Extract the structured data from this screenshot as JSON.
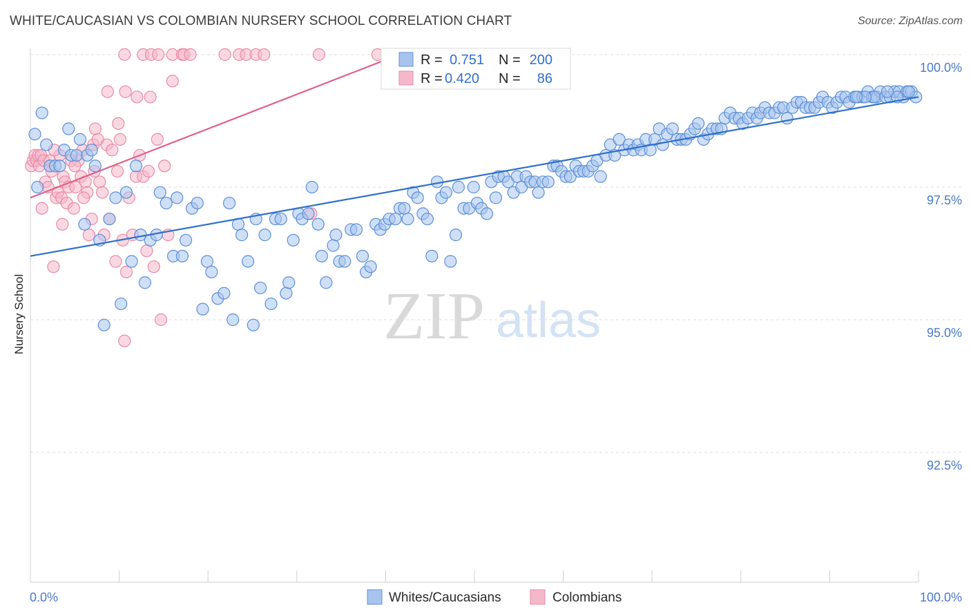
{
  "title": "WHITE/CAUCASIAN VS COLOMBIAN NURSERY SCHOOL CORRELATION CHART",
  "source": "Source: ZipAtlas.com",
  "watermark": {
    "zip": "ZIP",
    "atlas": "atlas"
  },
  "colors": {
    "blue_fill": "#a8c4ee",
    "blue_stroke": "#5b8fd6",
    "blue_line": "#2e6fcc",
    "pink_fill": "#f5b8cb",
    "pink_stroke": "#e88aa8",
    "pink_line": "#e0608a",
    "grid": "#dddddd",
    "tick_text": "#4a7ac8"
  },
  "legend_top": {
    "rows": [
      {
        "r_label": "R =",
        "r_value": "0.751",
        "n_label": "N =",
        "n_value": "200",
        "color": "blue"
      },
      {
        "r_label": "R =",
        "r_value": "0.420",
        "n_label": "N =",
        "n_value": "86",
        "color": "pink"
      }
    ]
  },
  "legend_bottom": [
    {
      "label": "Whites/Caucasians",
      "color": "blue"
    },
    {
      "label": "Colombians",
      "color": "pink"
    }
  ],
  "chart_data": {
    "type": "scatter",
    "title": "WHITE/CAUCASIAN VS COLOMBIAN NURSERY SCHOOL CORRELATION CHART",
    "xlabel": "",
    "ylabel": "Nursery School",
    "xlim": [
      0,
      100
    ],
    "ylim": [
      90.0,
      100.2
    ],
    "x_tick_labels": [
      "0.0%",
      "100.0%"
    ],
    "y_ticks": [
      92.5,
      95.0,
      97.5,
      100.0
    ],
    "y_tick_labels": [
      "92.5%",
      "95.0%",
      "97.5%",
      "100.0%"
    ],
    "grid": true,
    "legend_position": "top-center",
    "series": [
      {
        "name": "Whites/Caucasians",
        "color": "blue",
        "trend": {
          "x": [
            0,
            100
          ],
          "y": [
            96.2,
            99.2
          ]
        },
        "points": [
          [
            0.5,
            98.5
          ],
          [
            0.8,
            97.5
          ],
          [
            1.3,
            98.9
          ],
          [
            1.8,
            98.3
          ],
          [
            2.2,
            97.9
          ],
          [
            2.8,
            97.9
          ],
          [
            3.3,
            97.9
          ],
          [
            3.8,
            98.2
          ],
          [
            4.3,
            98.6
          ],
          [
            4.6,
            98.1
          ],
          [
            5.2,
            98.1
          ],
          [
            5.6,
            98.4
          ],
          [
            6.1,
            96.8
          ],
          [
            6.4,
            98.1
          ],
          [
            6.9,
            98.2
          ],
          [
            7.3,
            97.9
          ],
          [
            7.8,
            96.5
          ],
          [
            8.3,
            94.9
          ],
          [
            8.9,
            96.9
          ],
          [
            9.6,
            97.3
          ],
          [
            10.2,
            95.3
          ],
          [
            10.8,
            97.4
          ],
          [
            11.4,
            96.1
          ],
          [
            11.9,
            97.9
          ],
          [
            12.4,
            96.6
          ],
          [
            12.9,
            95.7
          ],
          [
            13.5,
            96.5
          ],
          [
            14.2,
            96.6
          ],
          [
            14.6,
            97.4
          ],
          [
            15.3,
            97.2
          ],
          [
            16.1,
            96.2
          ],
          [
            16.5,
            97.3
          ],
          [
            17.1,
            96.2
          ],
          [
            17.5,
            96.5
          ],
          [
            18.2,
            97.1
          ],
          [
            18.8,
            97.2
          ],
          [
            19.4,
            95.2
          ],
          [
            19.9,
            96.1
          ],
          [
            20.4,
            95.9
          ],
          [
            21.1,
            95.4
          ],
          [
            21.8,
            95.5
          ],
          [
            22.4,
            97.2
          ],
          [
            22.8,
            95.0
          ],
          [
            23.4,
            96.8
          ],
          [
            23.8,
            96.6
          ],
          [
            24.5,
            96.1
          ],
          [
            25.1,
            94.9
          ],
          [
            25.4,
            96.9
          ],
          [
            25.9,
            95.6
          ],
          [
            26.4,
            96.6
          ],
          [
            27.1,
            95.3
          ],
          [
            27.6,
            96.9
          ],
          [
            28.2,
            96.9
          ],
          [
            28.8,
            95.5
          ],
          [
            29.1,
            95.7
          ],
          [
            29.6,
            96.5
          ],
          [
            30.2,
            97.0
          ],
          [
            30.6,
            96.9
          ],
          [
            31.3,
            97.0
          ],
          [
            31.7,
            97.5
          ],
          [
            32.4,
            96.8
          ],
          [
            32.8,
            96.2
          ],
          [
            33.3,
            95.7
          ],
          [
            34.1,
            96.4
          ],
          [
            34.4,
            96.6
          ],
          [
            34.8,
            96.1
          ],
          [
            35.4,
            96.1
          ],
          [
            36.1,
            96.7
          ],
          [
            36.7,
            96.7
          ],
          [
            37.4,
            96.2
          ],
          [
            37.8,
            95.9
          ],
          [
            38.3,
            96.0
          ],
          [
            38.9,
            96.8
          ],
          [
            39.4,
            96.7
          ],
          [
            39.9,
            96.8
          ],
          [
            40.4,
            96.9
          ],
          [
            41.1,
            96.9
          ],
          [
            41.6,
            97.1
          ],
          [
            42.1,
            97.1
          ],
          [
            42.5,
            96.9
          ],
          [
            43.1,
            97.4
          ],
          [
            43.6,
            97.3
          ],
          [
            44.2,
            97.0
          ],
          [
            44.7,
            96.9
          ],
          [
            45.2,
            96.2
          ],
          [
            45.8,
            97.6
          ],
          [
            46.3,
            97.3
          ],
          [
            46.8,
            97.4
          ],
          [
            47.3,
            96.1
          ],
          [
            47.9,
            96.6
          ],
          [
            48.2,
            97.5
          ],
          [
            48.8,
            97.1
          ],
          [
            49.4,
            97.1
          ],
          [
            49.9,
            97.5
          ],
          [
            50.3,
            97.2
          ],
          [
            50.8,
            97.1
          ],
          [
            51.4,
            97.0
          ],
          [
            51.9,
            97.6
          ],
          [
            52.4,
            97.3
          ],
          [
            52.7,
            97.7
          ],
          [
            53.3,
            97.7
          ],
          [
            53.8,
            97.6
          ],
          [
            54.4,
            97.4
          ],
          [
            54.8,
            97.7
          ],
          [
            55.3,
            97.5
          ],
          [
            55.8,
            97.7
          ],
          [
            56.3,
            97.6
          ],
          [
            56.8,
            97.6
          ],
          [
            57.2,
            97.4
          ],
          [
            57.7,
            97.6
          ],
          [
            58.3,
            97.6
          ],
          [
            58.9,
            97.9
          ],
          [
            59.3,
            97.9
          ],
          [
            59.8,
            97.8
          ],
          [
            60.3,
            97.7
          ],
          [
            60.8,
            97.7
          ],
          [
            61.4,
            97.9
          ],
          [
            61.8,
            97.8
          ],
          [
            62.3,
            97.8
          ],
          [
            62.8,
            97.8
          ],
          [
            63.3,
            97.9
          ],
          [
            63.8,
            98.0
          ],
          [
            64.2,
            97.7
          ],
          [
            64.8,
            98.1
          ],
          [
            65.3,
            98.3
          ],
          [
            65.8,
            98.1
          ],
          [
            66.3,
            98.4
          ],
          [
            66.9,
            98.2
          ],
          [
            67.4,
            98.3
          ],
          [
            67.9,
            98.2
          ],
          [
            68.4,
            98.3
          ],
          [
            68.8,
            98.2
          ],
          [
            69.3,
            98.4
          ],
          [
            69.8,
            98.2
          ],
          [
            70.3,
            98.4
          ],
          [
            70.8,
            98.6
          ],
          [
            71.2,
            98.3
          ],
          [
            71.7,
            98.5
          ],
          [
            72.3,
            98.6
          ],
          [
            72.8,
            98.4
          ],
          [
            73.3,
            98.4
          ],
          [
            73.8,
            98.4
          ],
          [
            74.3,
            98.5
          ],
          [
            74.8,
            98.6
          ],
          [
            75.2,
            98.7
          ],
          [
            75.8,
            98.4
          ],
          [
            76.3,
            98.5
          ],
          [
            76.8,
            98.6
          ],
          [
            77.3,
            98.6
          ],
          [
            77.8,
            98.6
          ],
          [
            78.2,
            98.8
          ],
          [
            78.8,
            98.9
          ],
          [
            79.3,
            98.8
          ],
          [
            79.8,
            98.8
          ],
          [
            80.2,
            98.7
          ],
          [
            80.8,
            98.8
          ],
          [
            81.3,
            98.9
          ],
          [
            81.8,
            98.8
          ],
          [
            82.2,
            98.9
          ],
          [
            82.7,
            99.0
          ],
          [
            83.2,
            98.9
          ],
          [
            83.8,
            98.9
          ],
          [
            84.3,
            99.0
          ],
          [
            84.8,
            99.0
          ],
          [
            85.2,
            98.8
          ],
          [
            85.8,
            99.0
          ],
          [
            86.3,
            99.1
          ],
          [
            86.8,
            99.1
          ],
          [
            87.3,
            99.0
          ],
          [
            87.8,
            99.0
          ],
          [
            88.3,
            99.0
          ],
          [
            88.8,
            99.1
          ],
          [
            89.2,
            99.2
          ],
          [
            89.8,
            99.1
          ],
          [
            90.3,
            99.0
          ],
          [
            90.8,
            99.1
          ],
          [
            91.3,
            99.2
          ],
          [
            91.8,
            99.2
          ],
          [
            92.2,
            99.1
          ],
          [
            92.8,
            99.2
          ],
          [
            93.2,
            99.2
          ],
          [
            93.7,
            99.2
          ],
          [
            94.3,
            99.3
          ],
          [
            94.8,
            99.2
          ],
          [
            95.3,
            99.2
          ],
          [
            95.7,
            99.3
          ],
          [
            96.3,
            99.2
          ],
          [
            96.8,
            99.2
          ],
          [
            97.3,
            99.3
          ],
          [
            97.8,
            99.3
          ],
          [
            98.3,
            99.2
          ],
          [
            98.7,
            99.3
          ],
          [
            99.2,
            99.3
          ],
          [
            99.7,
            99.2
          ],
          [
            98.9,
            99.3
          ],
          [
            97.6,
            99.2
          ],
          [
            96.5,
            99.3
          ],
          [
            95.0,
            99.2
          ],
          [
            94.0,
            99.2
          ],
          [
            93.0,
            99.2
          ]
        ]
      },
      {
        "name": "Colombians",
        "color": "pink",
        "trend": {
          "x": [
            0,
            40
          ],
          "y": [
            97.3,
            99.9
          ]
        },
        "points": [
          [
            0.1,
            97.9
          ],
          [
            0.3,
            98.0
          ],
          [
            0.5,
            98.1
          ],
          [
            0.7,
            98.0
          ],
          [
            0.9,
            98.1
          ],
          [
            1.0,
            97.9
          ],
          [
            1.2,
            98.1
          ],
          [
            1.3,
            97.1
          ],
          [
            1.5,
            98.0
          ],
          [
            1.7,
            97.6
          ],
          [
            2.0,
            97.5
          ],
          [
            2.2,
            98.0
          ],
          [
            2.4,
            97.8
          ],
          [
            2.6,
            96.0
          ],
          [
            2.9,
            97.3
          ],
          [
            3.1,
            97.4
          ],
          [
            3.3,
            98.1
          ],
          [
            3.5,
            97.3
          ],
          [
            3.7,
            97.7
          ],
          [
            3.9,
            97.6
          ],
          [
            4.1,
            97.2
          ],
          [
            4.3,
            97.5
          ],
          [
            4.6,
            98.0
          ],
          [
            4.9,
            97.1
          ],
          [
            5.1,
            97.5
          ],
          [
            5.4,
            98.0
          ],
          [
            5.7,
            97.7
          ],
          [
            5.9,
            98.2
          ],
          [
            6.2,
            97.6
          ],
          [
            6.4,
            97.4
          ],
          [
            6.6,
            96.6
          ],
          [
            6.9,
            96.9
          ],
          [
            7.1,
            98.3
          ],
          [
            7.3,
            98.6
          ],
          [
            7.6,
            98.4
          ],
          [
            7.8,
            97.6
          ],
          [
            8.1,
            97.4
          ],
          [
            8.3,
            96.6
          ],
          [
            8.6,
            98.3
          ],
          [
            8.9,
            96.9
          ],
          [
            9.2,
            98.2
          ],
          [
            9.6,
            96.1
          ],
          [
            9.8,
            97.8
          ],
          [
            10.1,
            98.4
          ],
          [
            10.4,
            96.5
          ],
          [
            10.6,
            94.6
          ],
          [
            10.8,
            95.9
          ],
          [
            11.1,
            97.3
          ],
          [
            11.5,
            96.6
          ],
          [
            11.9,
            97.7
          ],
          [
            12.3,
            98.1
          ],
          [
            12.7,
            97.7
          ],
          [
            13.1,
            96.3
          ],
          [
            13.5,
            99.2
          ],
          [
            13.9,
            96.0
          ],
          [
            14.3,
            98.4
          ],
          [
            14.7,
            95.0
          ],
          [
            15.1,
            97.9
          ],
          [
            15.5,
            96.6
          ],
          [
            16.0,
            99.5
          ],
          [
            8.7,
            99.3
          ],
          [
            10.7,
            99.3
          ],
          [
            12.0,
            99.2
          ],
          [
            13.3,
            97.8
          ],
          [
            9.9,
            98.7
          ],
          [
            7.2,
            97.8
          ],
          [
            6.0,
            97.3
          ],
          [
            5.0,
            97.9
          ],
          [
            3.6,
            96.8
          ],
          [
            2.7,
            98.2
          ],
          [
            10.6,
            100.0
          ],
          [
            12.7,
            100.0
          ],
          [
            13.6,
            100.0
          ],
          [
            14.4,
            100.0
          ],
          [
            16.0,
            100.0
          ],
          [
            17.1,
            100.0
          ],
          [
            17.3,
            100.0
          ],
          [
            18.0,
            100.0
          ],
          [
            21.9,
            100.0
          ],
          [
            23.5,
            100.0
          ],
          [
            24.3,
            100.0
          ],
          [
            25.4,
            100.0
          ],
          [
            26.3,
            100.0
          ],
          [
            31.6,
            97.0
          ],
          [
            32.5,
            100.0
          ],
          [
            39.1,
            100.0
          ]
        ]
      }
    ]
  }
}
